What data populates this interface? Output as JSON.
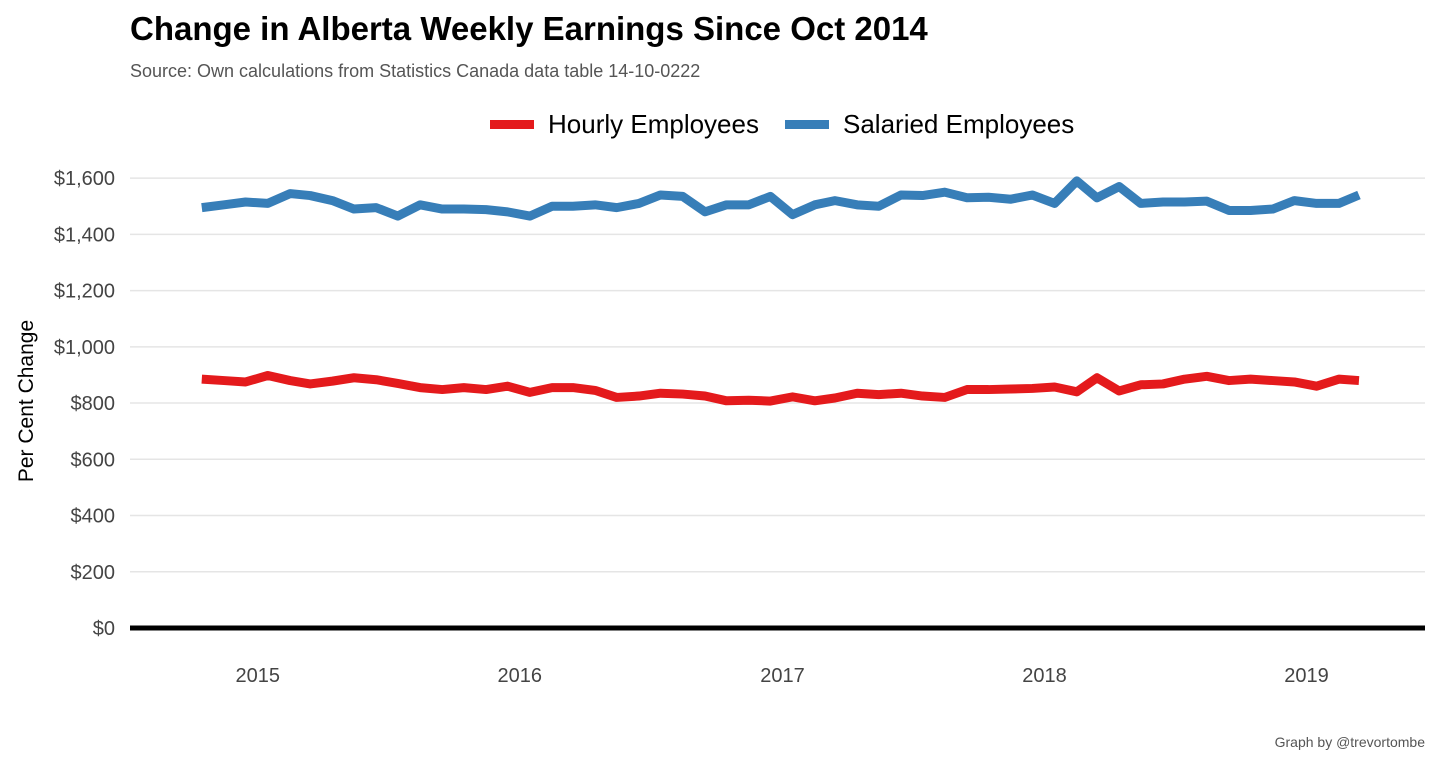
{
  "title": "Change in Alberta Weekly Earnings Since Oct 2014",
  "subtitle": "Source: Own calculations from Statistics Canada data table 14-10-0222",
  "caption": "Graph by @trevortombe",
  "chart_data": {
    "type": "line",
    "ylabel": "Per Cent Change",
    "xlabel": "",
    "ylim": [
      0,
      1700
    ],
    "xlim": [
      "2014-07-07",
      "2019-06-15"
    ],
    "y_ticks": [
      0,
      200,
      400,
      600,
      800,
      1000,
      1200,
      1400,
      1600
    ],
    "y_tick_labels": [
      "$0",
      "$200",
      "$400",
      "$600",
      "$800",
      "$1,000",
      "$1,200",
      "$1,400",
      "$1,600"
    ],
    "x_ticks": [
      "2015-01-01",
      "2016-01-01",
      "2017-01-01",
      "2018-01-01",
      "2019-01-01"
    ],
    "x_tick_labels": [
      "2015",
      "2016",
      "2017",
      "2018",
      "2019"
    ],
    "grid": "horizontal",
    "legend_position": "top",
    "x": [
      "2014-10",
      "2014-11",
      "2014-12",
      "2015-01",
      "2015-02",
      "2015-03",
      "2015-04",
      "2015-05",
      "2015-06",
      "2015-07",
      "2015-08",
      "2015-09",
      "2015-10",
      "2015-11",
      "2015-12",
      "2016-01",
      "2016-02",
      "2016-03",
      "2016-04",
      "2016-05",
      "2016-06",
      "2016-07",
      "2016-08",
      "2016-09",
      "2016-10",
      "2016-11",
      "2016-12",
      "2017-01",
      "2017-02",
      "2017-03",
      "2017-04",
      "2017-05",
      "2017-06",
      "2017-07",
      "2017-08",
      "2017-09",
      "2017-10",
      "2017-11",
      "2017-12",
      "2018-01",
      "2018-02",
      "2018-03",
      "2018-04",
      "2018-05",
      "2018-06",
      "2018-07",
      "2018-08",
      "2018-09",
      "2018-10",
      "2018-11",
      "2018-12",
      "2019-01",
      "2019-02",
      "2019-03"
    ],
    "series": [
      {
        "name": "Hourly Employees",
        "color": "#E41A1C",
        "values": [
          885,
          880,
          875,
          898,
          880,
          868,
          878,
          890,
          883,
          870,
          855,
          848,
          855,
          848,
          860,
          838,
          855,
          855,
          845,
          820,
          825,
          835,
          832,
          825,
          808,
          810,
          807,
          822,
          808,
          818,
          835,
          830,
          835,
          825,
          820,
          848,
          848,
          850,
          852,
          857,
          840,
          890,
          843,
          865,
          868,
          885,
          895,
          880,
          885,
          880,
          875,
          860,
          885,
          880
        ]
      },
      {
        "name": "Salaried Employees",
        "color": "#377EB8",
        "values": [
          1495,
          1505,
          1515,
          1510,
          1545,
          1538,
          1520,
          1490,
          1495,
          1465,
          1505,
          1490,
          1490,
          1488,
          1480,
          1465,
          1500,
          1500,
          1505,
          1495,
          1510,
          1540,
          1535,
          1480,
          1505,
          1505,
          1535,
          1470,
          1505,
          1520,
          1505,
          1500,
          1540,
          1538,
          1550,
          1530,
          1532,
          1525,
          1540,
          1510,
          1590,
          1530,
          1570,
          1510,
          1515,
          1515,
          1518,
          1485,
          1485,
          1490,
          1520,
          1510,
          1510,
          1540
        ]
      }
    ]
  }
}
